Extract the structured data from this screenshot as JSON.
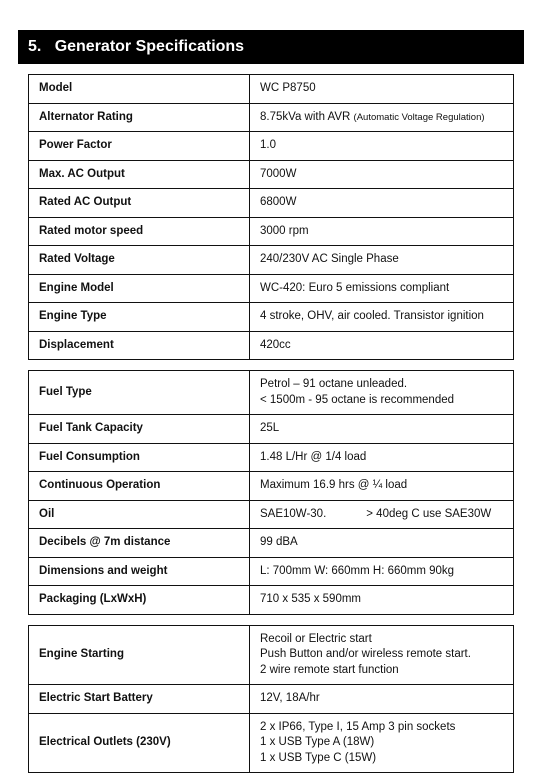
{
  "section": {
    "number": "5.",
    "title": "Generator Specifications"
  },
  "tables": [
    {
      "rows": [
        {
          "label": "Model",
          "value": "WC P8750"
        },
        {
          "label": "Alternator Rating",
          "value": "8.75kVa with AVR",
          "note": "(Automatic Voltage Regulation)"
        },
        {
          "label": "Power Factor",
          "value": "1.0"
        },
        {
          "label": "Max. AC Output",
          "value": "7000W"
        },
        {
          "label": "Rated AC Output",
          "value": "6800W"
        },
        {
          "label": "Rated motor speed",
          "value": "3000 rpm"
        },
        {
          "label": "Rated Voltage",
          "value": "240/230V AC Single Phase"
        },
        {
          "label": "Engine Model",
          "value": "WC-420: Euro 5 emissions compliant"
        },
        {
          "label": "Engine Type",
          "value": "4 stroke, OHV, air cooled. Transistor ignition"
        },
        {
          "label": "Displacement",
          "value": "420cc"
        }
      ]
    },
    {
      "rows": [
        {
          "label": "Fuel Type",
          "value": "Petrol – 91 octane unleaded.\n< 1500m - 95 octane is recommended"
        },
        {
          "label": "Fuel Tank Capacity",
          "value": "25L"
        },
        {
          "label": "Fuel Consumption",
          "value": "1.48 L/Hr @ 1/4 load"
        },
        {
          "label": "Continuous Operation",
          "value": "Maximum 16.9 hrs @ ¼ load"
        },
        {
          "label": "Oil",
          "value": "SAE10W-30.",
          "value_after_gap": "> 40deg C use SAE30W"
        },
        {
          "label": "Decibels @ 7m distance",
          "value": "99 dBA"
        },
        {
          "label": "Dimensions and weight",
          "value": "L: 700mm  W: 660mm  H: 660mm   90kg"
        },
        {
          "label": "Packaging (LxWxH)",
          "value": "710 x 535 x 590mm"
        }
      ]
    },
    {
      "rows": [
        {
          "label": "Engine Starting",
          "value": "Recoil or Electric start\nPush Button and/or wireless remote start.\n2 wire remote start function"
        },
        {
          "label": "Electric Start Battery",
          "value": "12V, 18A/hr"
        },
        {
          "label": "Electrical Outlets (230V)",
          "value": "2 x IP66, Type I, 15 Amp 3 pin sockets\n1 x USB Type A (18W)\n1 x USB Type C (15W)"
        }
      ]
    }
  ]
}
